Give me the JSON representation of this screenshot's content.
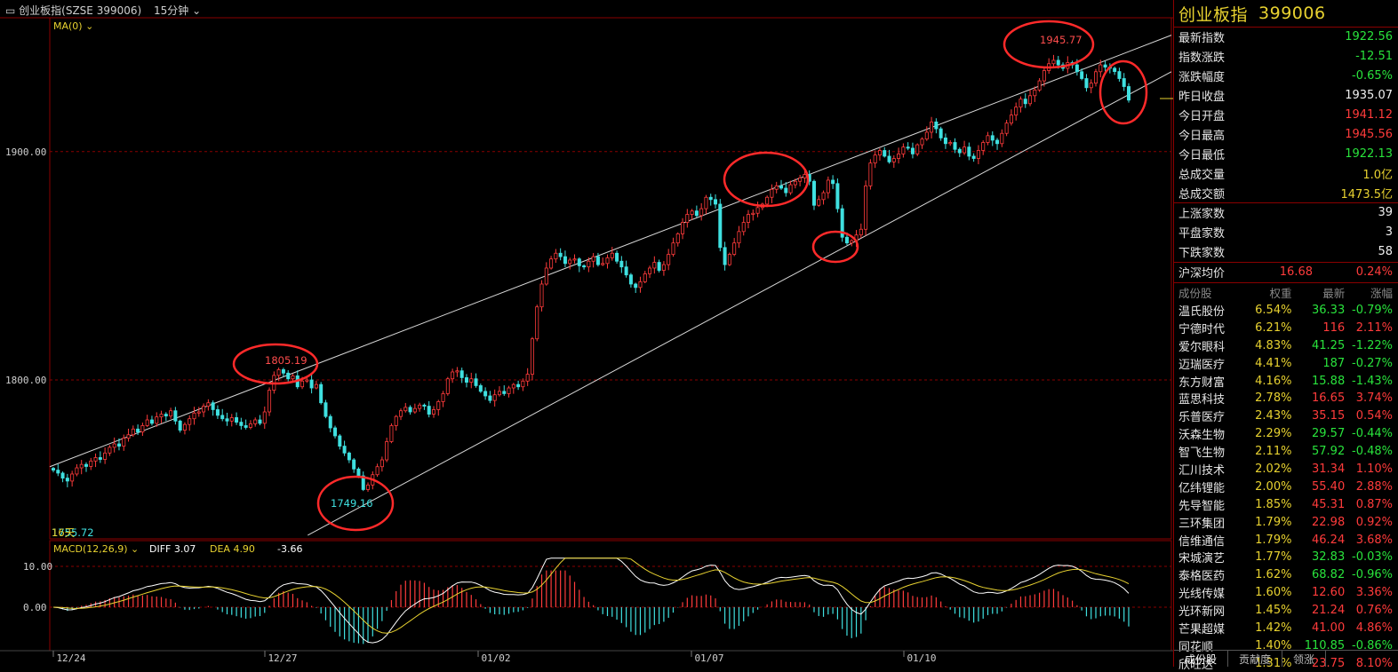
{
  "window": {
    "title": "创业板指(SZSE 399006)",
    "period": "15分钟"
  },
  "chart_data": {
    "type": "candlestick",
    "ma_label": "MA(0)",
    "y_ticks": [
      1800.0,
      1900.0
    ],
    "y_tick_labels": [
      "1800.00",
      "1900.00"
    ],
    "x_tick_labels": [
      "12/24",
      "12/27",
      "01/02",
      "01/07",
      "01/10"
    ],
    "annotations": {
      "high1": "1805.19",
      "low1": "1749.16",
      "high2": "1945.77",
      "bottom_left_value": "1755.72",
      "bottom_left_tag": "16天"
    },
    "channel_lines": [
      {
        "from": [
          0,
          1762
        ],
        "to": [
          1,
          1951
        ]
      },
      {
        "from": [
          0.23,
          1732
        ],
        "to": [
          1,
          1935
        ]
      }
    ],
    "closes": [
      1760.5,
      1759.2,
      1757.0,
      1755.72,
      1758.8,
      1761.5,
      1763.0,
      1762.1,
      1764.5,
      1766.0,
      1765.2,
      1768.0,
      1770.5,
      1772.0,
      1771.0,
      1774.5,
      1776.0,
      1778.5,
      1777.2,
      1780.0,
      1782.5,
      1781.0,
      1783.8,
      1785.0,
      1784.2,
      1786.5,
      1782.0,
      1778.0,
      1780.5,
      1783.0,
      1785.5,
      1786.0,
      1788.5,
      1790.0,
      1787.0,
      1784.5,
      1783.0,
      1782.0,
      1783.5,
      1781.5,
      1780.0,
      1779.2,
      1780.8,
      1782.5,
      1781.0,
      1786.0,
      1795.5,
      1802.0,
      1804.5,
      1803.0,
      1800.5,
      1801.8,
      1797.0,
      1799.5,
      1800.0,
      1796.5,
      1798.0,
      1790.0,
      1784.0,
      1779.0,
      1775.5,
      1771.0,
      1768.0,
      1765.0,
      1761.0,
      1758.0,
      1752.0,
      1754.0,
      1758.5,
      1762.0,
      1765.0,
      1773.0,
      1780.0,
      1784.0,
      1786.5,
      1788.0,
      1786.0,
      1787.5,
      1789.0,
      1788.5,
      1785.0,
      1787.0,
      1790.5,
      1794.0,
      1800.5,
      1803.5,
      1804.0,
      1801.0,
      1799.0,
      1800.5,
      1797.5,
      1795.0,
      1793.0,
      1791.0,
      1793.5,
      1795.0,
      1794.0,
      1796.5,
      1798.0,
      1797.0,
      1799.5,
      1802.5,
      1818.0,
      1832.0,
      1842.0,
      1849.0,
      1853.0,
      1855.5,
      1854.0,
      1851.0,
      1852.5,
      1853.0,
      1850.0,
      1849.5,
      1852.0,
      1854.0,
      1850.5,
      1851.0,
      1853.5,
      1855.5,
      1852.0,
      1849.5,
      1846.0,
      1842.0,
      1840.5,
      1843.0,
      1846.5,
      1849.0,
      1851.5,
      1848.0,
      1850.5,
      1855.0,
      1860.0,
      1864.0,
      1869.0,
      1872.5,
      1874.0,
      1872.0,
      1875.0,
      1880.0,
      1879.0,
      1877.0,
      1858.0,
      1850.5,
      1855.0,
      1860.0,
      1865.0,
      1869.0,
      1872.5,
      1873.0,
      1875.5,
      1877.0,
      1880.0,
      1883.5,
      1885.0,
      1884.0,
      1882.0,
      1885.5,
      1887.0,
      1888.5,
      1890.0,
      1887.0,
      1876.5,
      1879.0,
      1882.0,
      1887.5,
      1886.0,
      1875.0,
      1862.5,
      1860.0,
      1861.0,
      1863.5,
      1866.0,
      1885.0,
      1895.0,
      1898.5,
      1900.5,
      1898.0,
      1895.5,
      1897.0,
      1899.0,
      1902.0,
      1901.5,
      1899.0,
      1903.0,
      1905.5,
      1908.5,
      1913.0,
      1910.0,
      1906.0,
      1903.5,
      1904.0,
      1901.0,
      1899.5,
      1902.0,
      1898.0,
      1897.0,
      1900.5,
      1904.0,
      1907.0,
      1905.0,
      1903.5,
      1908.0,
      1912.5,
      1916.0,
      1919.5,
      1923.0,
      1921.0,
      1924.5,
      1927.0,
      1931.0,
      1935.5,
      1938.5,
      1940.0,
      1938.0,
      1936.5,
      1939.0,
      1938.0,
      1935.0,
      1932.0,
      1928.0,
      1930.0,
      1935.0,
      1938.0,
      1937.0,
      1936.5,
      1935.07,
      1932.0,
      1928.5,
      1922.56
    ],
    "macd": {
      "label": "MACD(12,26,9)",
      "diff_label": "DIFF 3.07",
      "dea_label": "DEA 4.90",
      "macd_label": "-3.66",
      "y_tick_labels": [
        "10.00",
        "0.00"
      ],
      "y_ticks": [
        10,
        0
      ]
    }
  },
  "panel": {
    "name": "创业板指",
    "code": "399006",
    "stats": [
      {
        "label": "最新指数",
        "value": "1922.56",
        "color": "green"
      },
      {
        "label": "指数涨跌",
        "value": "-12.51",
        "color": "green"
      },
      {
        "label": "涨跌幅度",
        "value": "-0.65%",
        "color": "green"
      },
      {
        "label": "昨日收盘",
        "value": "1935.07",
        "color": "white"
      },
      {
        "label": "今日开盘",
        "value": "1941.12",
        "color": "red"
      },
      {
        "label": "今日最高",
        "value": "1945.56",
        "color": "red"
      },
      {
        "label": "今日最低",
        "value": "1922.13",
        "color": "green"
      },
      {
        "label": "总成交量",
        "value": "1.0亿",
        "color": "yellow"
      },
      {
        "label": "总成交额",
        "value": "1473.5亿",
        "color": "yellow"
      }
    ],
    "breadth": [
      {
        "label": "上涨家数",
        "value": "39"
      },
      {
        "label": "平盘家数",
        "value": "3"
      },
      {
        "label": "下跌家数",
        "value": "58"
      }
    ],
    "avg": {
      "label": "沪深均价",
      "price": "16.68",
      "pct": "0.24%"
    },
    "stocks_header": {
      "name": "成份股",
      "weight": "权重",
      "last": "最新",
      "chg": "涨幅"
    },
    "stocks": [
      {
        "name": "温氏股份",
        "weight": "6.54%",
        "last": "36.33",
        "chg": "-0.79%"
      },
      {
        "name": "宁德时代",
        "weight": "6.21%",
        "last": "116",
        "chg": "2.11%"
      },
      {
        "name": "爱尔眼科",
        "weight": "4.83%",
        "last": "41.25",
        "chg": "-1.22%"
      },
      {
        "name": "迈瑞医疗",
        "weight": "4.41%",
        "last": "187",
        "chg": "-0.27%"
      },
      {
        "name": "东方财富",
        "weight": "4.16%",
        "last": "15.88",
        "chg": "-1.43%"
      },
      {
        "name": "蓝思科技",
        "weight": "2.78%",
        "last": "16.65",
        "chg": "3.74%"
      },
      {
        "name": "乐普医疗",
        "weight": "2.43%",
        "last": "35.15",
        "chg": "0.54%"
      },
      {
        "name": "沃森生物",
        "weight": "2.29%",
        "last": "29.57",
        "chg": "-0.44%"
      },
      {
        "name": "智飞生物",
        "weight": "2.11%",
        "last": "57.92",
        "chg": "-0.48%"
      },
      {
        "name": "汇川技术",
        "weight": "2.02%",
        "last": "31.34",
        "chg": "1.10%"
      },
      {
        "name": "亿纬锂能",
        "weight": "2.00%",
        "last": "55.40",
        "chg": "2.88%"
      },
      {
        "name": "先导智能",
        "weight": "1.85%",
        "last": "45.31",
        "chg": "0.87%"
      },
      {
        "name": "三环集团",
        "weight": "1.79%",
        "last": "22.98",
        "chg": "0.92%"
      },
      {
        "name": "信维通信",
        "weight": "1.79%",
        "last": "46.24",
        "chg": "3.68%"
      },
      {
        "name": "宋城演艺",
        "weight": "1.77%",
        "last": "32.83",
        "chg": "-0.03%"
      },
      {
        "name": "泰格医药",
        "weight": "1.62%",
        "last": "68.82",
        "chg": "-0.96%"
      },
      {
        "name": "光线传媒",
        "weight": "1.60%",
        "last": "12.60",
        "chg": "3.36%"
      },
      {
        "name": "光环新网",
        "weight": "1.45%",
        "last": "21.24",
        "chg": "0.76%"
      },
      {
        "name": "芒果超媒",
        "weight": "1.42%",
        "last": "41.00",
        "chg": "4.86%"
      },
      {
        "name": "同花顺",
        "weight": "1.40%",
        "last": "110.85",
        "chg": "-0.86%"
      },
      {
        "name": "欣旺达",
        "weight": "1.31%",
        "last": "23.75",
        "chg": "8.10%"
      }
    ],
    "tabs": [
      "成份股",
      "贡献度",
      "领涨"
    ]
  },
  "colors": {
    "up": "#ff3b3b",
    "down": "#3fe0e0",
    "grid": "#8a0000",
    "diff": "#ffffff",
    "dea": "#e8d230"
  }
}
